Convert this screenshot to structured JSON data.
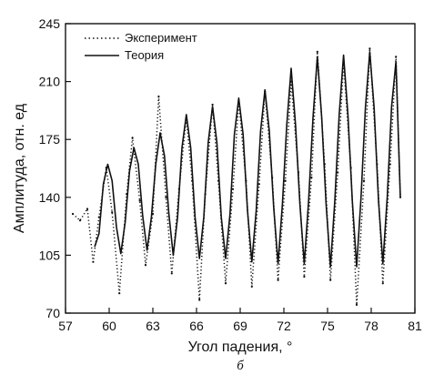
{
  "chart_data": {
    "type": "line",
    "xlabel": "Угол падения, °",
    "ylabel": "Амплитуда, отн. ед",
    "caption": "б",
    "xlim": [
      57,
      81
    ],
    "ylim": [
      70,
      245
    ],
    "x_ticks": [
      57,
      60,
      63,
      66,
      69,
      72,
      75,
      78,
      81
    ],
    "y_ticks": [
      70,
      105,
      140,
      175,
      210,
      245
    ],
    "grid": false,
    "legend_position": "top-left",
    "series": [
      {
        "name": "Эксперимент",
        "style": "dotted",
        "x": [
          57.5,
          58.0,
          58.5,
          58.9,
          59.3,
          59.8,
          60.2,
          60.7,
          61.2,
          61.6,
          62.1,
          62.5,
          63.0,
          63.4,
          63.9,
          64.3,
          64.8,
          65.3,
          65.7,
          66.2,
          66.6,
          67.1,
          67.5,
          68.0,
          68.5,
          68.9,
          69.4,
          69.8,
          70.3,
          70.7,
          71.2,
          71.6,
          72.1,
          72.5,
          73.0,
          73.4,
          73.9,
          74.3,
          74.8,
          75.2,
          75.7,
          76.1,
          76.6,
          77.0,
          77.5,
          77.9,
          78.4,
          78.8,
          79.3,
          79.7,
          80.0
        ],
        "values": [
          130,
          126,
          133,
          101,
          128,
          158,
          131,
          82,
          142,
          176,
          138,
          99,
          130,
          201,
          140,
          94,
          145,
          188,
          150,
          78,
          142,
          196,
          150,
          88,
          145,
          198,
          150,
          86,
          148,
          204,
          152,
          90,
          150,
          210,
          155,
          92,
          152,
          228,
          160,
          90,
          155,
          222,
          158,
          75,
          150,
          230,
          160,
          88,
          160,
          225,
          140
        ]
      },
      {
        "name": "Теория",
        "style": "solid",
        "x": [
          59.0,
          59.3,
          59.6,
          59.9,
          60.2,
          60.5,
          60.8,
          61.1,
          61.4,
          61.7,
          62.0,
          62.3,
          62.6,
          62.9,
          63.2,
          63.5,
          63.8,
          64.1,
          64.4,
          64.7,
          65.0,
          65.3,
          65.6,
          65.9,
          66.2,
          66.5,
          66.8,
          67.1,
          67.4,
          67.7,
          68.0,
          68.3,
          68.6,
          68.9,
          69.2,
          69.5,
          69.8,
          70.1,
          70.4,
          70.7,
          71.0,
          71.3,
          71.6,
          71.9,
          72.2,
          72.5,
          72.8,
          73.1,
          73.4,
          73.7,
          74.0,
          74.3,
          74.6,
          74.9,
          75.2,
          75.5,
          75.8,
          76.1,
          76.4,
          76.7,
          77.0,
          77.3,
          77.6,
          77.9,
          78.2,
          78.5,
          78.8,
          79.1,
          79.4,
          79.7,
          80.0
        ],
        "values": [
          110,
          118,
          148,
          160,
          150,
          122,
          106,
          125,
          156,
          170,
          160,
          129,
          108,
          128,
          160,
          179,
          165,
          130,
          105,
          128,
          170,
          190,
          170,
          128,
          103,
          128,
          173,
          195,
          173,
          128,
          103,
          130,
          178,
          200,
          178,
          132,
          101,
          132,
          180,
          205,
          180,
          134,
          100,
          136,
          184,
          218,
          184,
          136,
          100,
          138,
          188,
          225,
          188,
          136,
          98,
          138,
          190,
          226,
          190,
          138,
          98,
          140,
          194,
          228,
          194,
          138,
          100,
          140,
          195,
          222,
          140
        ]
      }
    ]
  }
}
